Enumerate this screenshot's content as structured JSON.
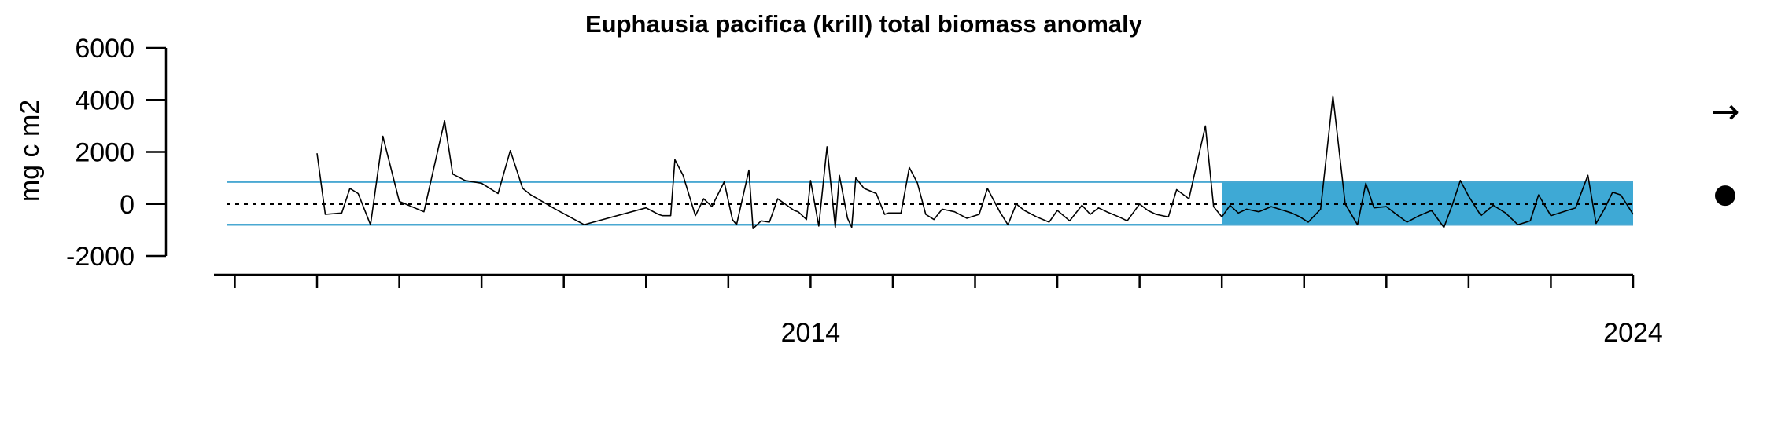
{
  "chart_data": {
    "type": "line",
    "title": "Euphausia pacifica (krill) total biomass anomaly",
    "ylabel": "mg c m2",
    "xlabel": "",
    "xlim": [
      2006.9,
      2024.0
    ],
    "ylim": [
      -2000,
      6000
    ],
    "yticks": [
      6000,
      4000,
      2000,
      0,
      -2000
    ],
    "ytick_labels": [
      "6000",
      "4000",
      "2000",
      "0",
      "-2000"
    ],
    "xticks_labeled": [
      2014,
      2024
    ],
    "xtick_labels": [
      "2014",
      "2024"
    ],
    "mean": 0,
    "sd_band": [
      -800,
      850
    ],
    "recent_window": [
      2019.0,
      2024.0
    ],
    "colors": {
      "band": "#4aa8d2",
      "recent_fill": "#3ea9d5",
      "line": "#000000"
    },
    "trend_symbol": "→",
    "mean_symbol": "●",
    "series": [
      {
        "x": [
          2008.0,
          2008.1,
          2008.3,
          2008.4,
          2008.5,
          2008.65,
          2008.8,
          2009.0,
          2009.3,
          2009.55,
          2009.65,
          2009.8,
          2010.0,
          2010.2,
          2010.35,
          2010.5,
          2010.6,
          2010.9,
          2011.25,
          2011.3,
          2012.0,
          2012.15,
          2012.2,
          2012.3,
          2012.35,
          2012.45,
          2012.6,
          2012.7,
          2012.8,
          2012.95,
          2013.05,
          2013.1,
          2013.25,
          2013.3,
          2013.4,
          2013.5,
          2013.6,
          2013.8,
          2013.85,
          2013.95,
          2014.0,
          2014.1,
          2014.2,
          2014.3,
          2014.35,
          2014.45,
          2014.5,
          2014.55,
          2014.65,
          2014.8,
          2014.9,
          2014.95,
          2015.1,
          2015.2,
          2015.3,
          2015.4,
          2015.5,
          2015.6,
          2015.75,
          2015.9,
          2016.05,
          2016.15,
          2016.3,
          2016.4,
          2016.5,
          2016.6,
          2016.75,
          2016.9,
          2017.0,
          2017.15,
          2017.3,
          2017.4,
          2017.5,
          2017.6,
          2017.75,
          2017.85,
          2018.0,
          2018.1,
          2018.2,
          2018.35,
          2018.45,
          2018.6,
          2018.7,
          2018.8,
          2018.9,
          2019.0,
          2019.1,
          2019.2,
          2019.3,
          2019.45,
          2019.6,
          2019.75,
          2019.85,
          2019.95,
          2020.05,
          2020.2,
          2020.35,
          2020.5,
          2020.65,
          2020.75,
          2020.85,
          2021.0,
          2021.1,
          2021.25,
          2021.4,
          2021.55,
          2021.7,
          2021.8,
          2021.9,
          2022.0,
          2022.15,
          2022.3,
          2022.45,
          2022.6,
          2022.75,
          2022.85,
          2023.0,
          2023.15,
          2023.3,
          2023.45,
          2023.55,
          2023.65,
          2023.75,
          2023.85,
          2023.95,
          2024.0
        ],
        "y": [
          1950,
          -400,
          -350,
          600,
          400,
          -800,
          2600,
          100,
          -300,
          3200,
          1150,
          900,
          800,
          400,
          2050,
          600,
          350,
          -200,
          -800,
          -750,
          -150,
          -400,
          -450,
          -450,
          1700,
          1100,
          -450,
          200,
          -100,
          850,
          -600,
          -800,
          1300,
          -950,
          -650,
          -700,
          200,
          -250,
          -300,
          -600,
          900,
          -850,
          2200,
          -900,
          1100,
          -550,
          -900,
          1000,
          600,
          400,
          -400,
          -350,
          -350,
          1400,
          800,
          -400,
          -600,
          -200,
          -300,
          -550,
          -400,
          600,
          -300,
          -800,
          0,
          -250,
          -500,
          -700,
          -250,
          -650,
          -50,
          -400,
          -150,
          -300,
          -500,
          -650,
          0,
          -250,
          -400,
          -500,
          550,
          200,
          1600,
          3000,
          -100,
          -500,
          -50,
          -350,
          -200,
          -300,
          -100,
          -250,
          -350,
          -500,
          -700,
          -200,
          4150,
          0,
          -800,
          800,
          -150,
          -100,
          -350,
          -700,
          -450,
          -250,
          -900,
          -50,
          900,
          300,
          -450,
          -50,
          -350,
          -800,
          -650,
          350,
          -450,
          -300,
          -150,
          1100,
          -750,
          -200,
          450,
          350,
          -150,
          -400
        ]
      }
    ]
  }
}
